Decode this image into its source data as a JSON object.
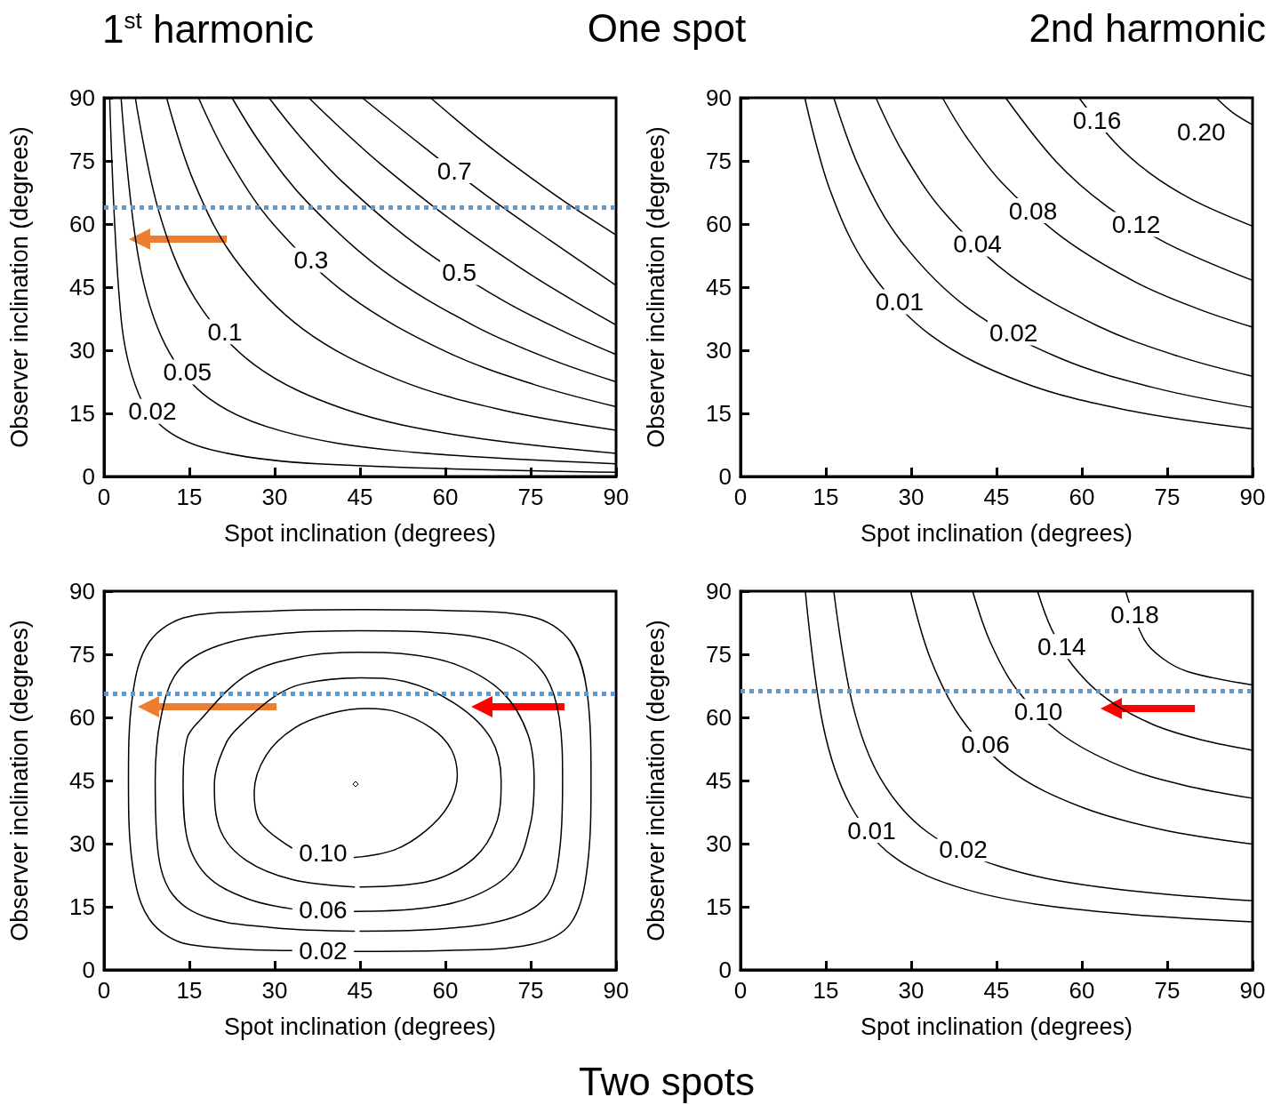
{
  "chart_data": [
    {
      "type": "line",
      "title": "1$^{st}$ harmonic",
      "annotations": [
        "One spot"
      ],
      "xlabel": "Spot inclination (degrees)",
      "ylabel": "Observer inclination (degrees)",
      "xlim": [
        0,
        90
      ],
      "xticks": [
        0,
        15,
        30,
        45,
        60,
        75,
        90
      ],
      "ylim": [
        0,
        90
      ],
      "yticks": [
        0,
        15,
        30,
        45,
        60,
        75,
        90
      ],
      "marker": "none",
      "line_style": "solid",
      "ref_lines": [
        {
          "axis": "y",
          "value": 64,
          "color": "#5b9bd5",
          "line_style": "dotted"
        }
      ],
      "series": [
        {
          "name": "0.02",
          "color": "#000000",
          "x": [
            1,
            3,
            6,
            11,
            19.9,
            37.6,
            90
          ],
          "values": [
            90,
            37.6,
            19.9,
            11,
            6,
            3,
            1
          ]
        },
        {
          "name": "0.05",
          "color": "#000000",
          "x": [
            3,
            6.1,
            10.8,
            18.5,
            31.2,
            51.7,
            90
          ],
          "values": [
            90,
            51.7,
            31.2,
            18.5,
            10.8,
            6.1,
            3
          ]
        },
        {
          "name": "0.1",
          "color": "#000000",
          "x": [
            5.5,
            9.7,
            16,
            26.5,
            42.3,
            62.7,
            90
          ],
          "values": [
            90,
            62.7,
            42.3,
            26.5,
            16,
            9.7,
            5.5
          ]
        },
        {
          "color": "#000000",
          "x": [
            11,
            15.8,
            23,
            35,
            51.7,
            70,
            90
          ],
          "values": [
            90,
            70,
            51.7,
            35,
            23,
            15.8,
            11
          ]
        },
        {
          "name": "0.3",
          "color": "#000000",
          "x": [
            16.6,
            21.9,
            29.8,
            43,
            59.9,
            75.5,
            90
          ],
          "values": [
            90,
            75.5,
            59.9,
            43,
            29.8,
            21.9,
            16.6
          ]
        },
        {
          "color": "#000000",
          "x": [
            22.5,
            27.8,
            35.8,
            49,
            65.1,
            78.6,
            90
          ],
          "values": [
            90,
            78.6,
            65.1,
            49,
            35.8,
            27.8,
            22.5
          ]
        },
        {
          "name": "0.5",
          "color": "#000000",
          "x": [
            29,
            34.2,
            42,
            55,
            69.9,
            81.2,
            90
          ],
          "values": [
            90,
            81.2,
            69.9,
            55,
            42,
            34.2,
            29
          ]
        },
        {
          "color": "#000000",
          "x": [
            36,
            41,
            48.5,
            61,
            74.4,
            83.5,
            90
          ],
          "values": [
            90,
            83.5,
            74.4,
            61,
            48.5,
            41,
            36
          ]
        },
        {
          "name": "0.7",
          "color": "#000000",
          "x": [
            45.4,
            56.2,
            67,
            78.3,
            90
          ],
          "values": [
            90,
            78.3,
            67,
            56.2,
            45.4
          ]
        },
        {
          "color": "#000000",
          "x": [
            57.4,
            65.2,
            73,
            81.1,
            90
          ],
          "values": [
            90,
            81.1,
            73,
            65.2,
            57.4
          ]
        }
      ]
    },
    {
      "type": "line",
      "title": "2nd harmonic",
      "xlabel": "Spot inclination (degrees)",
      "ylabel": "Observer inclination (degrees)",
      "xlim": [
        0,
        90
      ],
      "xticks": [
        0,
        15,
        30,
        45,
        60,
        75,
        90
      ],
      "ylim": [
        0,
        90
      ],
      "yticks": [
        0,
        15,
        30,
        45,
        60,
        75,
        90
      ],
      "marker": "none",
      "line_style": "solid",
      "series": [
        {
          "name": "0.01",
          "color": "#000000",
          "x": [
            11.3,
            15.7,
            22.4,
            33.5,
            49.5,
            68.2,
            90
          ],
          "values": [
            90,
            68.2,
            49.5,
            33.5,
            22.4,
            15.7,
            11.3
          ]
        },
        {
          "name": "0.02",
          "color": "#000000",
          "x": [
            16.4,
            21.1,
            28.2,
            40,
            56,
            72.7,
            90
          ],
          "values": [
            90,
            72.7,
            56,
            40,
            28.2,
            21.1,
            16.4
          ]
        },
        {
          "name": "0.04",
          "color": "#000000",
          "x": [
            23.8,
            28.6,
            35.7,
            47.6,
            62.9,
            76.9,
            90
          ],
          "values": [
            90,
            76.9,
            62.9,
            47.6,
            35.7,
            28.6,
            23.8
          ]
        },
        {
          "name": "0.08",
          "color": "#000000",
          "x": [
            35.5,
            39.7,
            46.1,
            56.7,
            69.6,
            80.7,
            90
          ],
          "values": [
            90,
            80.7,
            69.6,
            56.7,
            46.1,
            39.7,
            35.5
          ]
        },
        {
          "name": "0.12",
          "color": "#000000",
          "x": [
            46.6,
            55.5,
            64.3,
            74.8,
            90
          ],
          "values": [
            90,
            74.8,
            64.3,
            55.5,
            46.6
          ]
        },
        {
          "name": "0.16",
          "color": "#000000",
          "x": [
            59.5,
            65.8,
            72,
            79.4,
            90
          ],
          "values": [
            90,
            79.4,
            72,
            65.8,
            59.5
          ]
        },
        {
          "name": "0.20",
          "color": "#000000",
          "x": [
            83.6,
            86.5,
            90
          ],
          "values": [
            90,
            86.5,
            83.6
          ]
        }
      ]
    },
    {
      "type": "line",
      "annotations": [
        "Two spots"
      ],
      "xlabel": "Spot inclination (degrees)",
      "ylabel": "Observer inclination (degrees)",
      "xlim": [
        0,
        90
      ],
      "xticks": [
        0,
        15,
        30,
        45,
        60,
        75,
        90
      ],
      "ylim": [
        0,
        90
      ],
      "yticks": [
        0,
        15,
        30,
        45,
        60,
        75,
        90
      ],
      "marker": "none",
      "line_style": "solid",
      "ref_lines": [
        {
          "axis": "y",
          "value": 65.7,
          "color": "#5b9bd5",
          "line_style": "dotted"
        }
      ],
      "series": [
        {
          "name": "0.02",
          "color": "#000000",
          "x": [
            44,
            60,
            75,
            82,
            85,
            85.6,
            85,
            82,
            75,
            60,
            45,
            30,
            15,
            8,
            5,
            4.3,
            5,
            8,
            15,
            33
          ],
          "values": [
            4.4,
            4.6,
            6,
            11,
            25,
            45,
            65,
            78,
            84,
            85.4,
            85.6,
            85.3,
            84,
            78,
            65,
            45,
            25,
            12,
            6,
            4.6
          ]
        },
        {
          "color": "#000000",
          "x": [
            45,
            60,
            72,
            78,
            80.2,
            80.6,
            80,
            77,
            70,
            58,
            45,
            32,
            20,
            13,
            10,
            9,
            9.5,
            12,
            18,
            30,
            44
          ],
          "values": [
            9.2,
            9.8,
            12.5,
            18,
            30,
            45,
            60,
            71,
            77.5,
            80.2,
            80.6,
            80,
            77,
            71,
            60,
            45,
            28,
            18,
            12.5,
            10,
            9.2
          ]
        },
        {
          "name": "0.06",
          "color": "#000000",
          "x": [
            44,
            55,
            65,
            72,
            75,
            75.6,
            74.5,
            70,
            62,
            52,
            45,
            35,
            25,
            16.3,
            14.6,
            13.9,
            14.5,
            18,
            25,
            33
          ],
          "values": [
            13.9,
            14.5,
            17.5,
            24,
            35,
            45,
            56,
            66,
            72.5,
            75.2,
            75.5,
            74.5,
            70,
            58.5,
            55,
            45,
            32,
            22.5,
            17,
            14.5
          ]
        },
        {
          "color": "#000000",
          "x": [
            45,
            57,
            65,
            69,
            69.8,
            68,
            62,
            53,
            45,
            35,
            30,
            24.3,
            21.5,
            19.4,
            20.5,
            25,
            33,
            44
          ],
          "values": [
            19.7,
            21,
            26.5,
            35,
            45,
            55,
            63,
            68.5,
            69.4,
            68,
            65,
            58.5,
            54,
            44,
            33,
            26,
            21.5,
            19.7
          ]
        },
        {
          "name": "0.10",
          "color": "#000000",
          "x": [
            44,
            51,
            56.5,
            60.5,
            62.1,
            61,
            57.5,
            51.5,
            46.3,
            40,
            33.5,
            28.5,
            26.4,
            27.5,
            33
          ],
          "values": [
            26.7,
            28.5,
            33,
            39,
            46.2,
            52.5,
            57.5,
            61.3,
            62.1,
            61,
            57.5,
            51,
            42.2,
            35,
            29
          ]
        }
      ]
    },
    {
      "type": "line",
      "xlabel": "Spot inclination (degrees)",
      "ylabel": "Observer inclination (degrees)",
      "xlim": [
        0,
        90
      ],
      "xticks": [
        0,
        15,
        30,
        45,
        60,
        75,
        90
      ],
      "ylim": [
        0,
        90
      ],
      "yticks": [
        0,
        15,
        30,
        45,
        60,
        75,
        90
      ],
      "marker": "none",
      "line_style": "solid",
      "ref_lines": [
        {
          "axis": "y",
          "value": 66.2,
          "color": "#5b9bd5",
          "line_style": "dotted"
        }
      ],
      "series": [
        {
          "name": "0.01",
          "color": "#000000",
          "x": [
            11.4,
            14.5,
            19.2,
            26.9,
            39.4,
            58.2,
            90
          ],
          "values": [
            90,
            58.2,
            39.4,
            26.9,
            19.2,
            14.5,
            11.4
          ]
        },
        {
          "name": "0.02",
          "color": "#000000",
          "x": [
            16.4,
            19.7,
            24.6,
            32.8,
            45.5,
            63.1,
            90
          ],
          "values": [
            90,
            63.1,
            45.5,
            32.8,
            24.6,
            19.7,
            16.4
          ]
        },
        {
          "name": "0.06",
          "color": "#000000",
          "x": [
            29.9,
            33.4,
            38.7,
            47.4,
            59.9,
            73.9,
            90
          ],
          "values": [
            90,
            73.9,
            59.9,
            47.4,
            38.7,
            33.4,
            29.9
          ]
        },
        {
          "name": "0.10",
          "color": "#000000",
          "x": [
            40.8,
            43.9,
            48.5,
            56.2,
            66.7,
            77.9,
            90
          ],
          "values": [
            90,
            77.9,
            66.7,
            56.2,
            48.5,
            43.9,
            40.8
          ]
        },
        {
          "name": "0.14",
          "color": "#000000",
          "x": [
            52.2,
            54.6,
            58.3,
            64.4,
            72.5,
            81.2,
            90
          ],
          "values": [
            90,
            81.2,
            72.5,
            64.4,
            58.3,
            54.6,
            52.2
          ]
        },
        {
          "name": "0.18",
          "color": "#000000",
          "x": [
            67.7,
            70.9,
            74.1,
            78.6,
            90
          ],
          "values": [
            90,
            78.6,
            74.1,
            70.9,
            67.7
          ]
        }
      ]
    }
  ]
}
